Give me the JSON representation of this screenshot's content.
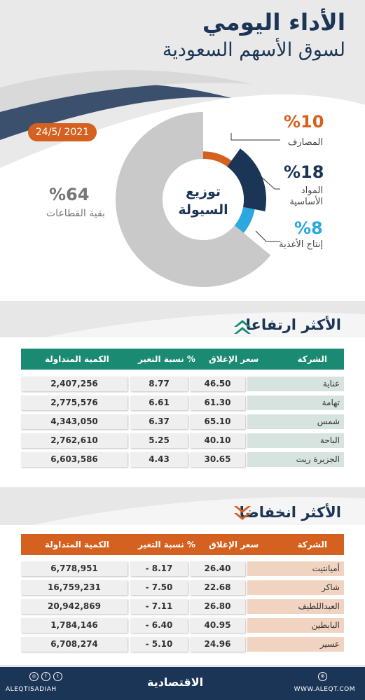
{
  "header": {
    "title_line1": "الأداء اليومي",
    "title_line2": "لسوق الأسهم السعودية",
    "date": "24/5/ 2021",
    "colors": {
      "navy": "#1b3557",
      "orange": "#d4611f",
      "gray": "#c9c9c9",
      "cyan": "#2aa8df",
      "teal": "#1b8a72"
    }
  },
  "chart_data": {
    "type": "pie",
    "center_label_line1": "توزيع",
    "center_label_line2": "السيولة",
    "slices": [
      {
        "label": "المصارف",
        "pct_text": "%10",
        "value": 10,
        "color": "#d4611f"
      },
      {
        "label": "المواد الأساسية",
        "label_line1": "المواد",
        "label_line2": "الأساسية",
        "pct_text": "%18",
        "value": 18,
        "color": "#1b3557"
      },
      {
        "label": "إنتاج الأغذية",
        "pct_text": "%8",
        "value": 8,
        "color": "#2aa8df"
      },
      {
        "label": "بقية القطاعات",
        "pct_text": "%64",
        "value": 64,
        "color": "#c9c9c9"
      }
    ]
  },
  "gainers": {
    "title": "الأكثر ارتفاعا",
    "headers": {
      "company": "الشركة",
      "close": "سعر الإغلاق",
      "change": "نسبة التغير %",
      "volume": "الكمية المتداولة"
    },
    "rows": [
      {
        "company": "عناية",
        "close": "46.50",
        "change": "8.77",
        "volume": "2,407,256"
      },
      {
        "company": "تهامة",
        "close": "61.30",
        "change": "6.61",
        "volume": "2,775,576"
      },
      {
        "company": "شمس",
        "close": "65.10",
        "change": "6.37",
        "volume": "4,343,050"
      },
      {
        "company": "الباحة",
        "close": "40.10",
        "change": "5.25",
        "volume": "2,762,610"
      },
      {
        "company": "الجزيرة ريت",
        "close": "30.65",
        "change": "4.43",
        "volume": "6,603,586"
      }
    ]
  },
  "losers": {
    "title": "الأكثر انخفاضا",
    "headers": {
      "company": "الشركة",
      "close": "سعر الإغلاق",
      "change": "نسبة التغير %",
      "volume": "الكمية المتداولة"
    },
    "rows": [
      {
        "company": "أميانتيت",
        "close": "26.40",
        "change": "- 8.17",
        "volume": "6,778,951"
      },
      {
        "company": "شاكر",
        "close": "22.68",
        "change": "- 7.50",
        "volume": "16,759,231"
      },
      {
        "company": "العبداللطيف",
        "close": "26.80",
        "change": "- 7.11",
        "volume": "20,942,869"
      },
      {
        "company": "البابطين",
        "close": "40.95",
        "change": "- 6.40",
        "volume": "1,784,146"
      },
      {
        "company": "عسير",
        "close": "24.96",
        "change": "- 5.10",
        "volume": "6,708,274"
      }
    ]
  },
  "footer": {
    "handle": "ALEQTISADIAH",
    "logo": "الاقتصادية",
    "website": "WWW.ALEQT.COM",
    "icons": [
      "instagram-icon",
      "facebook-icon",
      "twitter-icon",
      "globe-icon"
    ]
  }
}
